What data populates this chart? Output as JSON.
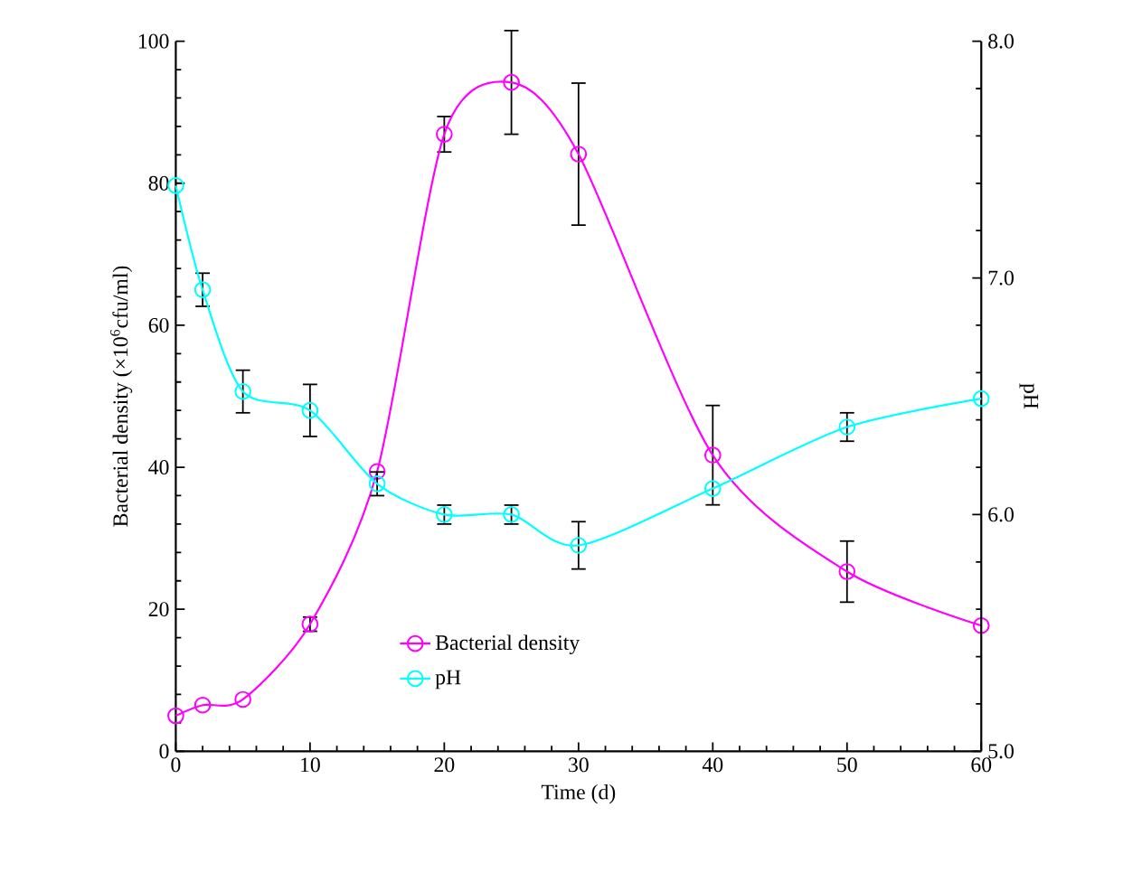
{
  "chart_data": {
    "type": "line",
    "xlabel": "Time (d)",
    "ylabel": "Bacterial density (×10$^{6}$cfu/ml)",
    "y2label": "pH",
    "x": [
      0,
      2,
      5,
      10,
      15,
      20,
      25,
      30,
      40,
      50,
      60
    ],
    "series": [
      {
        "name": "Bacterial density",
        "color": "#ff00ff",
        "values": [
          5.0,
          6.5,
          7.3,
          17.9,
          39.4,
          86.9,
          94.2,
          84.1,
          41.7,
          25.3,
          17.7
        ],
        "errors": [
          null,
          null,
          null,
          1,
          null,
          2.5,
          7.3,
          10,
          7,
          4.3,
          null
        ]
      },
      {
        "name": "pH",
        "color": "#00ffff",
        "axis": "y2",
        "values": [
          7.39,
          6.95,
          6.52,
          6.44,
          6.13,
          6.0,
          6.0,
          5.87,
          6.11,
          6.37,
          6.49
        ],
        "errors": [
          null,
          0.07,
          0.09,
          0.11,
          0.05,
          0.04,
          0.04,
          0.1,
          null,
          0.06,
          null
        ]
      }
    ],
    "xlim": [
      0,
      60
    ],
    "xticks": [
      0,
      10,
      20,
      30,
      40,
      50,
      60
    ],
    "ylim": [
      0,
      100
    ],
    "yticks": [
      0,
      20,
      40,
      60,
      80,
      100
    ],
    "y2lim": [
      5,
      8
    ],
    "y2ticks": [
      {
        "value": 5,
        "label": "5.0"
      },
      {
        "value": 6,
        "label": "6.0"
      },
      {
        "value": 7,
        "label": "7.0"
      },
      {
        "value": 8,
        "label": "8.0"
      }
    ],
    "legend": "bottom",
    "marker": "circle",
    "line_style": "solid"
  }
}
